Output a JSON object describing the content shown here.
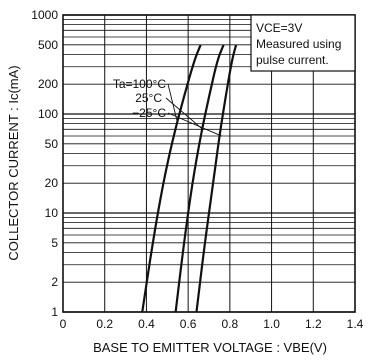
{
  "chart_data": {
    "type": "line",
    "ylabel": "COLLECTOR CURRENT : Ic(mA)",
    "xlabel": "BASE TO EMITTER VOLTAGE : VBE(V)",
    "xlim": [
      0,
      1.4
    ],
    "ylim": [
      1,
      1000
    ],
    "yscale": "log",
    "grid": true,
    "xticks": [
      "0",
      "0.2",
      "0.4",
      "0.6",
      "0.8",
      "1.0",
      "1.2",
      "1.4"
    ],
    "yticks": [
      "1",
      "2",
      "5",
      "10",
      "20",
      "50",
      "100",
      "200",
      "500",
      "1000"
    ],
    "legend_box": [
      "VCE=3V",
      "Measured using",
      "pulse current."
    ],
    "series": [
      {
        "name": "Ta=100°C",
        "x": [
          0.38,
          0.43,
          0.48,
          0.53,
          0.58,
          0.63,
          0.66
        ],
        "y": [
          1,
          5,
          20,
          60,
          150,
          350,
          500
        ]
      },
      {
        "name": "25°C",
        "x": [
          0.54,
          0.58,
          0.62,
          0.66,
          0.7,
          0.74,
          0.77
        ],
        "y": [
          1,
          5,
          20,
          60,
          150,
          350,
          500
        ]
      },
      {
        "name": "−25°C",
        "x": [
          0.64,
          0.68,
          0.72,
          0.75,
          0.78,
          0.81,
          0.83
        ],
        "y": [
          1,
          5,
          20,
          60,
          150,
          350,
          500
        ]
      }
    ]
  }
}
